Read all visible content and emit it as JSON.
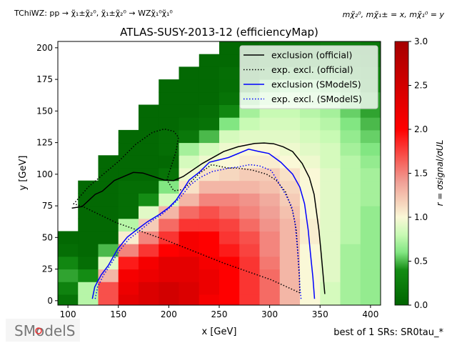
{
  "header": {
    "process": "TChiWZ: pp → χ̃₁±χ̃₂⁰, χ̃₁±χ̃₂⁰ → WZχ̃₁⁰χ̃₁⁰",
    "mass_assignment": "mχ̃₂⁰, mχ̃₁± = x, mχ̃₁⁰ = y"
  },
  "footer": {
    "logo_text": "SModelS",
    "best_sr": "best of 1 SRs: SR0tau_*"
  },
  "chart_data": {
    "type": "heatmap",
    "title": "ATLAS-SUSY-2013-12 (efficiencyMap)",
    "xlabel": "x [GeV]",
    "ylabel": "y [GeV]",
    "xlim": [
      90,
      410
    ],
    "ylim": [
      -3.5,
      205
    ],
    "xticks": [
      100,
      150,
      200,
      250,
      300,
      350,
      400
    ],
    "yticks": [
      0,
      25,
      50,
      75,
      100,
      125,
      150,
      175,
      200
    ],
    "x_centers": [
      100,
      120,
      140,
      160,
      180,
      200,
      220,
      240,
      260,
      280,
      300,
      320,
      340,
      360,
      380,
      400
    ],
    "y_centers": [
      0,
      10,
      20,
      30,
      40,
      50,
      60,
      70,
      80,
      90,
      100,
      110,
      120,
      130,
      140,
      150,
      160,
      170,
      180,
      190,
      200
    ],
    "z": [
      [
        0.15,
        0.75,
        1.7,
        2.3,
        2.4,
        2.5,
        2.4,
        2.1,
        2.0,
        1.8,
        1.6,
        1.3,
        1.0,
        0.85,
        0.7,
        0.65
      ],
      [
        0.3,
        0.75,
        1.7,
        2.2,
        2.4,
        2.5,
        2.4,
        2.2,
        2.0,
        1.8,
        1.6,
        1.3,
        1.0,
        0.85,
        0.7,
        0.65
      ],
      [
        0.45,
        0.4,
        1.3,
        2.1,
        2.2,
        2.3,
        2.3,
        2.2,
        2.0,
        1.8,
        1.6,
        1.3,
        1.0,
        0.9,
        0.7,
        0.65
      ],
      [
        0.35,
        0.1,
        0.9,
        1.9,
        2.1,
        2.3,
        2.3,
        2.1,
        2.0,
        1.8,
        1.55,
        1.3,
        1.0,
        0.9,
        0.7,
        0.65
      ],
      [
        0.1,
        0.05,
        0.5,
        1.5,
        1.8,
        2.0,
        2.1,
        2.0,
        1.9,
        1.75,
        1.5,
        1.3,
        1.0,
        0.9,
        0.7,
        0.65
      ],
      [
        0.05,
        0.05,
        0.05,
        1.05,
        1.5,
        1.8,
        2.1,
        2.0,
        1.8,
        1.7,
        1.5,
        1.3,
        1.05,
        0.9,
        0.75,
        0.65
      ],
      [
        null,
        0.05,
        0.05,
        0.75,
        1.2,
        1.6,
        1.8,
        1.8,
        1.75,
        1.6,
        1.45,
        1.3,
        1.05,
        0.9,
        0.75,
        0.65
      ],
      [
        null,
        0.05,
        0.05,
        0.1,
        0.9,
        1.3,
        1.6,
        1.7,
        1.6,
        1.5,
        1.4,
        1.25,
        1.0,
        0.9,
        0.75,
        0.65
      ],
      [
        null,
        0.05,
        0.05,
        0.1,
        0.4,
        0.85,
        1.3,
        1.5,
        1.5,
        1.45,
        1.35,
        1.2,
        1.0,
        0.9,
        0.75,
        0.7
      ],
      [
        null,
        0.05,
        0.05,
        0.1,
        0.1,
        0.6,
        1.1,
        1.3,
        1.3,
        1.3,
        1.25,
        1.15,
        1.0,
        0.9,
        0.75,
        0.7
      ],
      [
        null,
        null,
        0.05,
        0.05,
        0.05,
        0.15,
        0.95,
        1.1,
        1.15,
        1.2,
        1.2,
        1.1,
        1.0,
        0.9,
        0.75,
        0.7
      ],
      [
        null,
        null,
        0.05,
        0.05,
        0.05,
        0.05,
        0.85,
        0.95,
        1.0,
        1.05,
        1.05,
        1.0,
        0.95,
        0.85,
        0.75,
        0.65
      ],
      [
        null,
        null,
        null,
        0.05,
        0.05,
        0.1,
        0.7,
        0.85,
        0.95,
        1.0,
        1.0,
        0.95,
        0.9,
        0.85,
        0.7,
        0.6
      ],
      [
        null,
        null,
        null,
        0.05,
        0.05,
        0.1,
        0.2,
        0.5,
        0.85,
        0.9,
        0.9,
        0.9,
        0.85,
        0.8,
        0.65,
        0.55
      ],
      [
        null,
        null,
        null,
        null,
        0.05,
        0.05,
        0.1,
        0.15,
        0.6,
        0.8,
        0.85,
        0.85,
        0.8,
        0.75,
        0.6,
        0.5
      ],
      [
        null,
        null,
        null,
        null,
        0.05,
        0.05,
        0.05,
        0.1,
        0.35,
        0.7,
        0.8,
        0.8,
        0.75,
        0.7,
        0.55,
        0.45
      ],
      [
        null,
        null,
        null,
        null,
        null,
        0.05,
        0.05,
        0.05,
        0.15,
        0.55,
        0.7,
        0.75,
        0.7,
        0.65,
        0.55,
        0.45
      ],
      [
        null,
        null,
        null,
        null,
        null,
        0.05,
        0.05,
        0.05,
        0.1,
        0.35,
        0.55,
        0.6,
        0.6,
        0.55,
        0.5,
        0.4
      ],
      [
        null,
        null,
        null,
        null,
        null,
        null,
        0.05,
        0.05,
        0.1,
        0.2,
        0.4,
        0.45,
        0.45,
        0.45,
        0.4,
        0.35
      ],
      [
        null,
        null,
        null,
        null,
        null,
        null,
        null,
        0.05,
        0.05,
        0.1,
        0.25,
        0.3,
        0.35,
        0.35,
        0.3,
        0.25
      ],
      [
        null,
        null,
        null,
        null,
        null,
        null,
        null,
        null,
        0.05,
        0.05,
        0.1,
        0.15,
        0.2,
        0.25,
        0.25,
        0.2
      ]
    ],
    "colorbar": {
      "label": "r = σsignal/σUL",
      "range": [
        0,
        3
      ],
      "ticks": [
        0.0,
        0.5,
        1.0,
        1.5,
        2.0,
        2.5,
        3.0
      ],
      "tick_labels": [
        "0.0",
        "0.5",
        "1.0",
        "1.5",
        "2.0",
        "2.5",
        "3.0"
      ]
    },
    "legend": {
      "placement": "top-right"
    },
    "series": [
      {
        "name": "exclusion (official)",
        "color": "#000000",
        "style": "solid",
        "points": [
          [
            103.9,
            73.2
          ],
          [
            114.1,
            74.4
          ],
          [
            127.0,
            84.1
          ],
          [
            134.1,
            86.6
          ],
          [
            145.9,
            95.0
          ],
          [
            164.8,
            101.4
          ],
          [
            174.2,
            101.0
          ],
          [
            195.5,
            95.4
          ],
          [
            204.9,
            95.0
          ],
          [
            214.3,
            98.2
          ],
          [
            233.2,
            108.5
          ],
          [
            254.4,
            117.9
          ],
          [
            268.6,
            121.7
          ],
          [
            285.1,
            124.3
          ],
          [
            294.5,
            124.7
          ],
          [
            304.0,
            124.1
          ],
          [
            313.4,
            121.7
          ],
          [
            322.8,
            117.9
          ],
          [
            332.3,
            108.5
          ],
          [
            339.4,
            97.3
          ],
          [
            344.1,
            84.1
          ],
          [
            348.8,
            56.0
          ],
          [
            351.1,
            37.2
          ],
          [
            354.7,
            5.3
          ]
        ]
      },
      {
        "name": "exp. excl. (official)",
        "color": "#000000",
        "style": "dotted",
        "points": [
          [
            329.9,
            6.2
          ],
          [
            301.6,
            16.5
          ],
          [
            254.4,
            29.7
          ],
          [
            195.5,
            48.4
          ],
          [
            148.3,
            61.6
          ],
          [
            114.1,
            74.7
          ],
          [
            105.8,
            76.6
          ],
          [
            120.0,
            89.8
          ],
          [
            136.5,
            101.0
          ],
          [
            150.6,
            110.4
          ],
          [
            167.1,
            123.6
          ],
          [
            183.7,
            133.0
          ],
          [
            195.5,
            135.8
          ],
          [
            204.9,
            133.9
          ],
          [
            209.6,
            129.2
          ],
          [
            207.2,
            117.9
          ],
          [
            200.2,
            101.0
          ],
          [
            198.3,
            95.4
          ],
          [
            204.9,
            86.9
          ],
          [
            214.3,
            87.9
          ],
          [
            230.8,
            101.0
          ],
          [
            242.6,
            107.6
          ],
          [
            259.1,
            104.8
          ],
          [
            268.6,
            104.8
          ],
          [
            282.7,
            103.3
          ],
          [
            296.9,
            100.1
          ],
          [
            306.3,
            95.4
          ],
          [
            315.8,
            86.0
          ],
          [
            322.8,
            71.0
          ],
          [
            326.4,
            56.0
          ],
          [
            328.0,
            37.2
          ],
          [
            329.4,
            18.4
          ],
          [
            329.9,
            6.2
          ]
        ]
      },
      {
        "name": "exclusion (SModelS)",
        "color": "#0000ff",
        "style": "solid",
        "points": [
          [
            124.2,
            1.5
          ],
          [
            126.6,
            10.9
          ],
          [
            132.9,
            20.3
          ],
          [
            140.0,
            27.8
          ],
          [
            149.4,
            40.9
          ],
          [
            158.9,
            50.3
          ],
          [
            169.5,
            56.9
          ],
          [
            179.0,
            62.5
          ],
          [
            190.7,
            68.2
          ],
          [
            200.2,
            73.8
          ],
          [
            207.2,
            79.4
          ],
          [
            214.3,
            87.9
          ],
          [
            220.2,
            95.4
          ],
          [
            230.8,
            102.0
          ],
          [
            240.3,
            109.5
          ],
          [
            259.1,
            113.2
          ],
          [
            279.2,
            119.8
          ],
          [
            289.8,
            117.9
          ],
          [
            299.2,
            116.4
          ],
          [
            311.0,
            109.5
          ],
          [
            322.8,
            100.1
          ],
          [
            329.9,
            89.8
          ],
          [
            334.6,
            76.6
          ],
          [
            338.2,
            56.0
          ],
          [
            340.5,
            37.2
          ],
          [
            342.9,
            18.4
          ],
          [
            344.5,
            1.5
          ]
        ]
      },
      {
        "name": "exp. excl. (SModelS)",
        "color": "#0000ff",
        "style": "dotted",
        "points": [
          [
            127.0,
            1.5
          ],
          [
            129.4,
            10.9
          ],
          [
            135.3,
            20.3
          ],
          [
            142.4,
            28.7
          ],
          [
            150.6,
            39.1
          ],
          [
            160.1,
            48.4
          ],
          [
            171.9,
            55.9
          ],
          [
            183.7,
            63.5
          ],
          [
            193.1,
            68.2
          ],
          [
            202.5,
            74.7
          ],
          [
            212.0,
            82.3
          ],
          [
            221.4,
            91.6
          ],
          [
            230.8,
            97.3
          ],
          [
            242.6,
            102.0
          ],
          [
            259.1,
            104.8
          ],
          [
            268.6,
            105.7
          ],
          [
            280.4,
            107.6
          ],
          [
            289.8,
            106.7
          ],
          [
            301.6,
            102.9
          ],
          [
            308.7,
            93.5
          ],
          [
            315.8,
            84.1
          ],
          [
            321.7,
            74.7
          ],
          [
            325.2,
            61.6
          ],
          [
            327.6,
            40.9
          ],
          [
            329.4,
            22.2
          ],
          [
            329.9,
            10.9
          ],
          [
            331.1,
            1.5
          ]
        ]
      }
    ]
  }
}
